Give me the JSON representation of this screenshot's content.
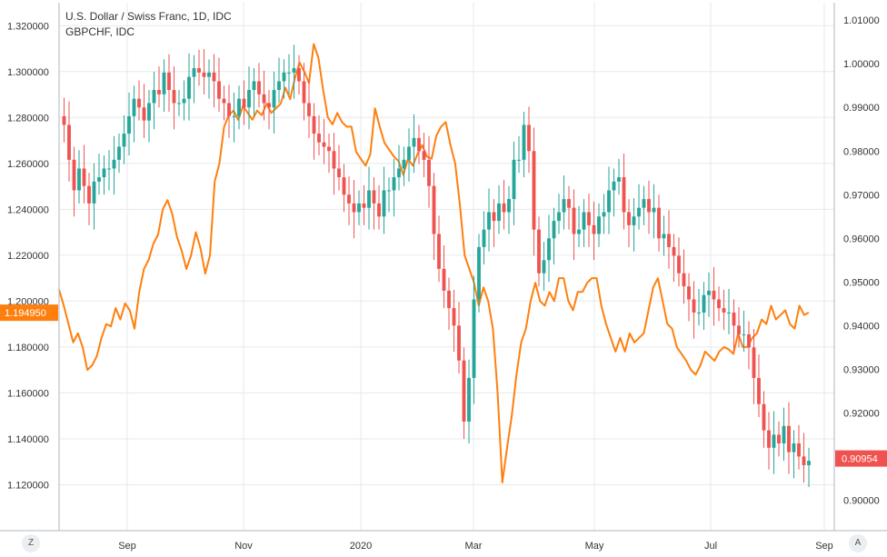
{
  "colors": {
    "up": "#26a69a",
    "down": "#ef5350",
    "overlay": "#ff7f0e",
    "grid": "#e6e9ec",
    "axis": "#b2b5be"
  },
  "legend": {
    "main": "U.S. Dollar / Swiss Franc, 1D, IDC",
    "overlay": "GBPCHF, IDC"
  },
  "badges": {
    "left_price": "1.194950",
    "right_price": "0.90954"
  },
  "buttons": {
    "left": "Z",
    "right": "A"
  },
  "chart_data": {
    "type": "line",
    "x_labels": [
      "Sep",
      "Nov",
      "2020",
      "Mar",
      "May",
      "Jul",
      "Sep"
    ],
    "left_axis": {
      "ticks": [
        "1.320000",
        "1.300000",
        "1.280000",
        "1.260000",
        "1.240000",
        "1.220000",
        "1.200000",
        "1.180000",
        "1.160000",
        "1.140000",
        "1.120000"
      ],
      "ylim": [
        1.1,
        1.33
      ]
    },
    "right_axis": {
      "ticks": [
        "1.01000",
        "1.00000",
        "0.99000",
        "0.98000",
        "0.97000",
        "0.96000",
        "0.95000",
        "0.94000",
        "0.93000",
        "0.92000",
        "0.91000",
        "0.90000"
      ],
      "ylim": [
        0.893,
        1.014
      ]
    },
    "series": [
      {
        "name": "GBPCHF, IDC",
        "kind": "line",
        "axis": "left",
        "values": [
          1.205,
          1.198,
          1.19,
          1.182,
          1.186,
          1.18,
          1.17,
          1.172,
          1.176,
          1.184,
          1.19,
          1.189,
          1.197,
          1.192,
          1.199,
          1.196,
          1.188,
          1.204,
          1.214,
          1.218,
          1.225,
          1.229,
          1.24,
          1.244,
          1.238,
          1.228,
          1.222,
          1.214,
          1.22,
          1.23,
          1.223,
          1.212,
          1.22,
          1.252,
          1.26,
          1.276,
          1.281,
          1.283,
          1.279,
          1.285,
          1.282,
          1.279,
          1.283,
          1.281,
          1.286,
          1.282,
          1.284,
          1.286,
          1.293,
          1.288,
          1.297,
          1.304,
          1.3,
          1.295,
          1.312,
          1.306,
          1.292,
          1.28,
          1.277,
          1.282,
          1.278,
          1.276,
          1.276,
          1.265,
          1.262,
          1.259,
          1.264,
          1.284,
          1.276,
          1.269,
          1.266,
          1.263,
          1.261,
          1.255,
          1.262,
          1.259,
          1.264,
          1.268,
          1.263,
          1.262,
          1.272,
          1.276,
          1.278,
          1.268,
          1.26,
          1.242,
          1.22,
          1.214,
          1.208,
          1.198,
          1.206,
          1.2,
          1.188,
          1.16,
          1.121,
          1.136,
          1.15,
          1.168,
          1.182,
          1.188,
          1.2,
          1.208,
          1.2,
          1.198,
          1.204,
          1.2,
          1.21,
          1.21,
          1.2,
          1.196,
          1.204,
          1.204,
          1.208,
          1.21,
          1.21,
          1.198,
          1.19,
          1.184,
          1.178,
          1.184,
          1.178,
          1.186,
          1.182,
          1.184,
          1.186,
          1.196,
          1.206,
          1.21,
          1.2,
          1.19,
          1.188,
          1.18,
          1.177,
          1.174,
          1.17,
          1.168,
          1.172,
          1.178,
          1.176,
          1.174,
          1.178,
          1.18,
          1.179,
          1.177,
          1.186,
          1.18,
          1.18,
          1.184,
          1.186,
          1.192,
          1.19,
          1.198,
          1.192,
          1.194,
          1.196,
          1.19,
          1.188,
          1.198,
          1.194,
          1.195
        ]
      },
      {
        "name": "U.S. Dollar / Swiss Franc, 1D, IDC",
        "kind": "candlestick",
        "axis": "right",
        "values": [
          0.988,
          0.986,
          0.978,
          0.971,
          0.976,
          0.972,
          0.968,
          0.973,
          0.974,
          0.976,
          0.976,
          0.978,
          0.981,
          0.984,
          0.988,
          0.992,
          0.99,
          0.987,
          0.991,
          0.994,
          0.993,
          0.998,
          0.994,
          0.991,
          0.991,
          0.992,
          0.997,
          0.999,
          0.998,
          0.997,
          0.998,
          0.996,
          0.992,
          0.991,
          0.988,
          0.988,
          0.992,
          0.99,
          0.994,
          0.996,
          0.993,
          0.991,
          0.99,
          0.994,
          0.996,
          0.998,
          0.998,
          0.999,
          0.996,
          0.991,
          0.988,
          0.984,
          0.982,
          0.981,
          0.98,
          0.976,
          0.974,
          0.97,
          0.968,
          0.966,
          0.968,
          0.967,
          0.971,
          0.968,
          0.965,
          0.971,
          0.971,
          0.974,
          0.976,
          0.978,
          0.981,
          0.983,
          0.98,
          0.978,
          0.972,
          0.961,
          0.953,
          0.948,
          0.944,
          0.94,
          0.932,
          0.918,
          0.928,
          0.946,
          0.958,
          0.962,
          0.966,
          0.964,
          0.968,
          0.966,
          0.969,
          0.978,
          0.978,
          0.986,
          0.98,
          0.962,
          0.952,
          0.955,
          0.96,
          0.964,
          0.966,
          0.969,
          0.967,
          0.961,
          0.962,
          0.966,
          0.963,
          0.961,
          0.965,
          0.966,
          0.971,
          0.973,
          0.974,
          0.966,
          0.963,
          0.965,
          0.967,
          0.969,
          0.966,
          0.967,
          0.96,
          0.961,
          0.958,
          0.956,
          0.952,
          0.949,
          0.946,
          0.943,
          0.943,
          0.947,
          0.948,
          0.946,
          0.944,
          0.943,
          0.943,
          0.94,
          0.938,
          0.938,
          0.935,
          0.928,
          0.922,
          0.916,
          0.912,
          0.915,
          0.913,
          0.917,
          0.911,
          0.913,
          0.91,
          0.908,
          0.909
        ]
      }
    ],
    "grid": true
  }
}
